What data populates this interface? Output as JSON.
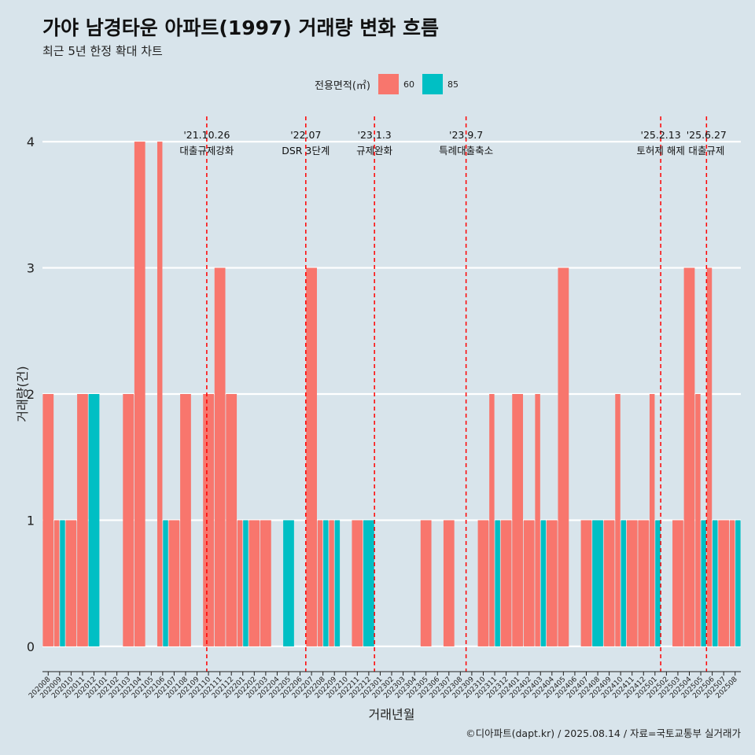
{
  "title": "가야 남경타운 아파트(1997) 거래량 변화 흐름",
  "subtitle": "최근 5년 한정 확대 차트",
  "caption": "©디아파트(dapt.kr) / 2025.08.14 / 자료=국토교통부 실거래가",
  "legend": {
    "title": "전용면적(㎡)",
    "items": [
      {
        "label": "60",
        "color": "#f8766d"
      },
      {
        "label": "85",
        "color": "#00bfc4"
      }
    ]
  },
  "chart_data": {
    "type": "bar",
    "xlabel": "거래년월",
    "ylabel": "거래량(건)",
    "ylim": [
      -0.2,
      4.2
    ],
    "yticks": [
      0,
      1,
      2,
      3,
      4
    ],
    "grid": true,
    "legend_position": "top",
    "categories": [
      "202008",
      "202009",
      "202010",
      "202011",
      "202012",
      "202101",
      "202102",
      "202103",
      "202104",
      "202105",
      "202106",
      "202107",
      "202108",
      "202109",
      "202110",
      "202111",
      "202112",
      "202201",
      "202202",
      "202203",
      "202204",
      "202205",
      "202206",
      "202207",
      "202208",
      "202209",
      "202210",
      "202211",
      "202212",
      "202301",
      "202302",
      "202303",
      "202304",
      "202305",
      "202306",
      "202307",
      "202308",
      "202309",
      "202310",
      "202311",
      "202312",
      "202401",
      "202402",
      "202403",
      "202404",
      "202405",
      "202406",
      "202407",
      "202408",
      "202409",
      "202410",
      "202411",
      "202412",
      "202501",
      "202502",
      "202503",
      "202504",
      "202505",
      "202506",
      "202507",
      "202508"
    ],
    "series": [
      {
        "name": "60",
        "color": "#f8766d",
        "values": [
          2,
          1,
          1,
          2,
          0,
          0,
          0,
          2,
          4,
          0,
          4,
          1,
          2,
          0,
          2,
          3,
          2,
          1,
          1,
          1,
          0,
          0,
          0,
          3,
          1,
          1,
          0,
          1,
          0,
          0,
          0,
          0,
          0,
          1,
          0,
          1,
          0,
          0,
          1,
          2,
          1,
          2,
          1,
          2,
          1,
          3,
          0,
          1,
          0,
          1,
          2,
          1,
          1,
          2,
          0,
          1,
          3,
          2,
          3,
          1,
          1
        ]
      },
      {
        "name": "85",
        "color": "#00bfc4",
        "values": [
          0,
          1,
          0,
          0,
          2,
          0,
          0,
          0,
          0,
          0,
          1,
          0,
          0,
          0,
          0,
          0,
          0,
          1,
          0,
          0,
          0,
          1,
          0,
          0,
          1,
          1,
          0,
          0,
          1,
          0,
          0,
          0,
          0,
          0,
          0,
          0,
          0,
          0,
          0,
          1,
          0,
          0,
          0,
          1,
          0,
          0,
          0,
          0,
          1,
          0,
          1,
          0,
          0,
          1,
          0,
          0,
          0,
          1,
          1,
          0,
          1
        ]
      }
    ],
    "annotations": [
      {
        "date": "'21.10.26",
        "label": "대출규제강화",
        "category": "202110",
        "offset": 0.35
      },
      {
        "date": "'22.07",
        "label": "DSR 3단계",
        "category": "202207",
        "offset": 0
      },
      {
        "date": "'23.1.3",
        "label": "규제완화",
        "category": "202301",
        "offset": 0
      },
      {
        "date": "'23.9.7",
        "label": "특례대출축소",
        "category": "202309",
        "offset": 0
      },
      {
        "date": "'25.2.13",
        "label": "토허제 해제",
        "category": "202502",
        "offset": 0
      },
      {
        "date": "'25.6.27",
        "label": "대출규제",
        "category": "202506",
        "offset": 0
      }
    ]
  }
}
